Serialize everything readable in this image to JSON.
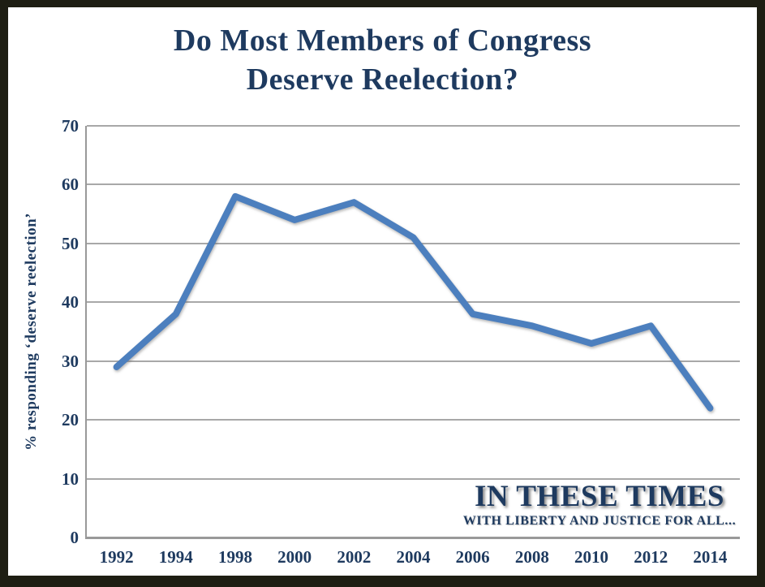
{
  "frame": {
    "border_color": "#1e1e13",
    "background": "#ffffff"
  },
  "chart_data": {
    "type": "line",
    "title": "Do Most Members of Congress Deserve Reelection?",
    "title_lines": [
      "Do Most Members of Congress",
      "Deserve Reelection?"
    ],
    "xlabel": "",
    "ylabel": "% responding ‘deserve reelection’",
    "categories": [
      "1992",
      "1994",
      "1998",
      "2000",
      "2002",
      "2004",
      "2006",
      "2008",
      "2010",
      "2012",
      "2014"
    ],
    "values": [
      29,
      38,
      58,
      54,
      57,
      51,
      38,
      36,
      33,
      36,
      22
    ],
    "ylim": [
      0,
      70
    ],
    "yticks": [
      0,
      10,
      20,
      30,
      40,
      50,
      60,
      70
    ],
    "grid": true,
    "legend": "none",
    "line_color": "#4c7fbe",
    "gridline_color": "#a8a8a8",
    "text_color": "#1e3a5f"
  },
  "watermark": {
    "name": "IN THESE TIMES",
    "tagline": "WITH LIBERTY AND JUSTICE FOR ALL..."
  }
}
